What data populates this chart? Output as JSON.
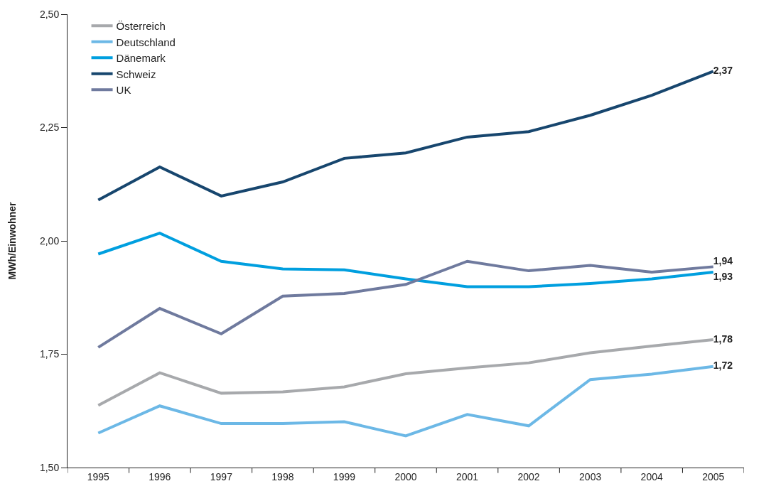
{
  "chart_data": {
    "type": "line",
    "ylabel": "MWh/Einwohner",
    "categories": [
      "1995",
      "1996",
      "1997",
      "1998",
      "1999",
      "2000",
      "2001",
      "2002",
      "2003",
      "2004",
      "2005"
    ],
    "ylim": [
      1.5,
      2.5
    ],
    "yticks": [
      {
        "value": 1.5,
        "label": "1,50"
      },
      {
        "value": 1.75,
        "label": "1,75"
      },
      {
        "value": 2.0,
        "label": "2,00"
      },
      {
        "value": 2.25,
        "label": "2,25"
      },
      {
        "value": 2.5,
        "label": "2,50"
      }
    ],
    "series": [
      {
        "name": "Österreich",
        "color": "#a7a9ac",
        "values": [
          1.637,
          1.709,
          1.664,
          1.667,
          1.678,
          1.707,
          1.72,
          1.731,
          1.753,
          1.768,
          1.782
        ],
        "value_labels": [
          null,
          null,
          null,
          null,
          null,
          null,
          null,
          null,
          null,
          null,
          "1,78"
        ]
      },
      {
        "name": "Deutschland",
        "color": "#6cb8e6",
        "values": [
          1.576,
          1.636,
          1.597,
          1.597,
          1.601,
          1.57,
          1.617,
          1.592,
          1.694,
          1.706,
          1.723
        ],
        "value_labels": [
          null,
          null,
          null,
          null,
          null,
          null,
          null,
          null,
          null,
          null,
          "1,72"
        ]
      },
      {
        "name": "Dänemark",
        "color": "#009fdf",
        "values": [
          1.971,
          2.017,
          1.955,
          1.938,
          1.936,
          1.916,
          1.899,
          1.899,
          1.906,
          1.916,
          1.931
        ],
        "value_labels": [
          null,
          null,
          null,
          null,
          null,
          null,
          null,
          null,
          null,
          null,
          "1,93"
        ]
      },
      {
        "name": "Schweiz",
        "color": "#17466e",
        "values": [
          2.09,
          2.163,
          2.099,
          2.13,
          2.182,
          2.194,
          2.229,
          2.241,
          2.277,
          2.321,
          2.374
        ],
        "value_labels": [
          null,
          null,
          null,
          null,
          null,
          null,
          null,
          null,
          null,
          null,
          "2,37"
        ]
      },
      {
        "name": "UK",
        "color": "#6f7a9e",
        "values": [
          1.765,
          1.851,
          1.795,
          1.878,
          1.884,
          1.904,
          1.955,
          1.934,
          1.946,
          1.931,
          1.943
        ],
        "value_labels": [
          null,
          null,
          null,
          null,
          null,
          null,
          null,
          null,
          null,
          null,
          "1,94"
        ]
      }
    ],
    "legend": "top left",
    "marker": "none",
    "line_style": "solid"
  }
}
